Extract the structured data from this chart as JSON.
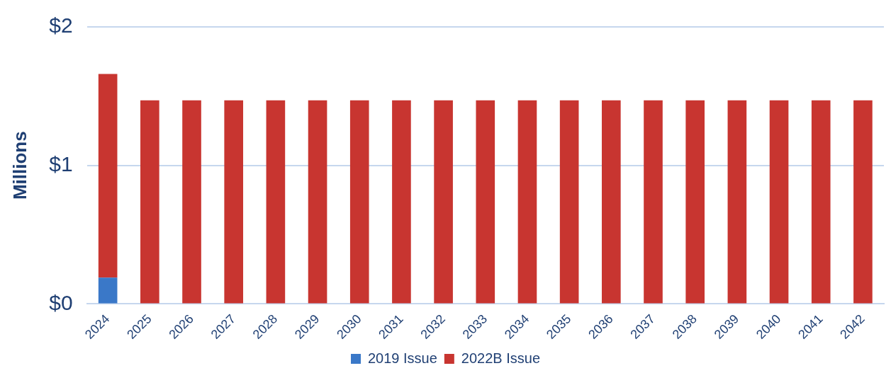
{
  "chart_data": {
    "type": "bar",
    "stacked": true,
    "ylabel": "Millions",
    "categories": [
      "2024",
      "2025",
      "2026",
      "2027",
      "2028",
      "2029",
      "2030",
      "2031",
      "2032",
      "2033",
      "2034",
      "2035",
      "2036",
      "2037",
      "2038",
      "2039",
      "2040",
      "2041",
      "2042"
    ],
    "series": [
      {
        "name": "2019 Issue",
        "color": "#3a78c8",
        "values": [
          0.19,
          null,
          null,
          null,
          null,
          null,
          null,
          null,
          null,
          null,
          null,
          null,
          null,
          null,
          null,
          null,
          null,
          null,
          null
        ]
      },
      {
        "name": "2022B Issue",
        "color": "#c83530",
        "values": [
          1.47,
          1.47,
          1.47,
          1.47,
          1.47,
          1.47,
          1.47,
          1.47,
          1.47,
          1.47,
          1.47,
          1.47,
          1.47,
          1.47,
          1.47,
          1.47,
          1.47,
          1.47,
          1.47
        ]
      }
    ],
    "ylim": [
      0,
      2
    ],
    "yticks": [
      {
        "value": 0,
        "label": "$0"
      },
      {
        "value": 1,
        "label": "$1"
      },
      {
        "value": 2,
        "label": "$2"
      }
    ],
    "grid": "y",
    "legend": "bottom"
  }
}
